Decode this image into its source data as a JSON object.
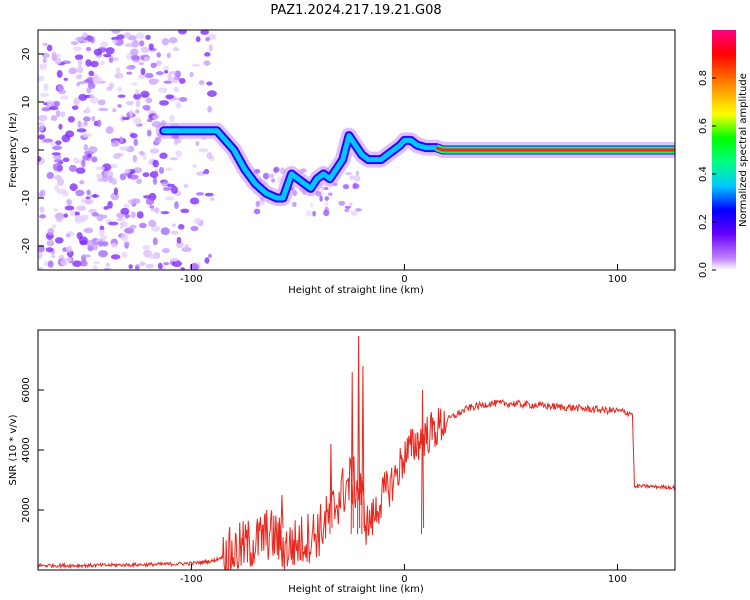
{
  "title": "PAZ1.2024.217.19.21.G08",
  "chart_data": [
    {
      "type": "heatmap",
      "xlabel": "Height of straight line (km)",
      "ylabel": "Frequency (Hz)",
      "xlim": [
        -172,
        127
      ],
      "ylim": [
        -25,
        25
      ],
      "x_ticks": [
        -100,
        0,
        100
      ],
      "y_ticks": [
        -20,
        -10,
        0,
        10,
        20
      ],
      "colorbar": {
        "label": "Normalized spectral amplitude",
        "range": [
          0,
          1
        ],
        "ticks": [
          "0.0",
          "0.2",
          "0.4",
          "0.6",
          "0.8"
        ],
        "colors": [
          "#ffffff",
          "#c080ff",
          "#6600ff",
          "#0000ff",
          "#00c8ff",
          "#00ff80",
          "#00ff00",
          "#ffff00",
          "#ff8000",
          "#ff0000",
          "#ff0080"
        ]
      },
      "ridge": {
        "x": [
          -113,
          -105,
          -95,
          -88,
          -84,
          -80,
          -75,
          -70,
          -65,
          -60,
          -57,
          -53,
          -50,
          -47,
          -44,
          -41,
          -38,
          -35,
          -32,
          -29,
          -26,
          -23,
          -20,
          -17,
          -14,
          -11,
          -8,
          -5,
          -2,
          0,
          3,
          6,
          10,
          15,
          18,
          20,
          60,
          108,
          127
        ],
        "y": [
          4,
          4,
          4,
          4,
          2,
          0,
          -4,
          -7,
          -9,
          -10,
          -10,
          -5,
          -6,
          -7,
          -8,
          -6,
          -5,
          -6,
          -4,
          -2,
          3,
          1,
          -1,
          -2,
          -2,
          -2,
          -1,
          0,
          1,
          2,
          2,
          1,
          0.5,
          0.5,
          0,
          0,
          0,
          0,
          0
        ]
      },
      "noise_region_x": [
        -172,
        -90
      ]
    },
    {
      "type": "line",
      "xlabel": "Height of straight line (km)",
      "ylabel": "SNR (10 * v/v)",
      "xlim": [
        -172,
        127
      ],
      "ylim": [
        0,
        8000
      ],
      "x_ticks": [
        -100,
        0,
        100
      ],
      "y_ticks": [
        2000,
        4000,
        6000
      ],
      "color": "#e8281e",
      "series": [
        {
          "x": [
            -172,
            -150,
            -120,
            -100,
            -90,
            -80,
            -75,
            -70,
            -65,
            -60,
            -57,
            -50,
            -40,
            -35,
            -30,
            -25,
            -20,
            -18,
            -15,
            -10,
            -5,
            0,
            5,
            10,
            15,
            20,
            25,
            30,
            40,
            50,
            60,
            70,
            80,
            90,
            100,
            105,
            107,
            108,
            110,
            127
          ],
          "y": [
            150,
            150,
            180,
            220,
            300,
            600,
            800,
            900,
            1200,
            1100,
            700,
            900,
            1300,
            1800,
            2500,
            3000,
            2600,
            1500,
            1700,
            2500,
            3000,
            3800,
            4200,
            4500,
            4700,
            5000,
            5200,
            5400,
            5550,
            5550,
            5500,
            5450,
            5400,
            5350,
            5300,
            5250,
            5200,
            2750,
            2800,
            2750
          ]
        }
      ]
    }
  ]
}
